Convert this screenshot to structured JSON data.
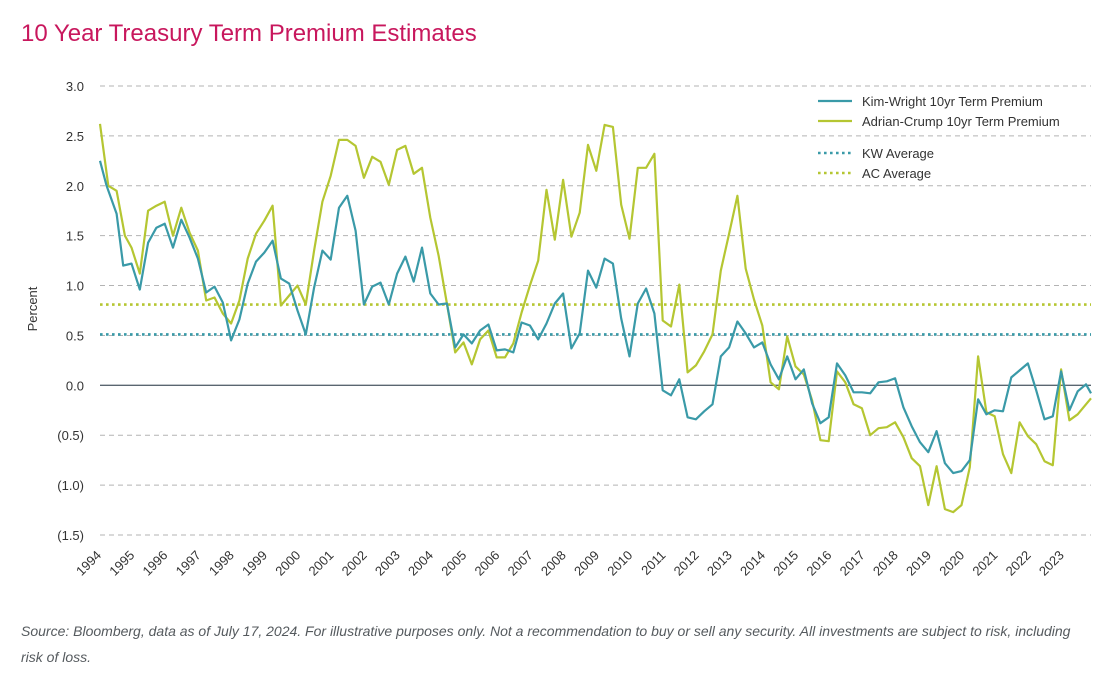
{
  "title": "10 Year Treasury Term Premium Estimates",
  "footnote": "Source: Bloomberg, data as of July 17, 2024. For illustrative purposes only. Not a recommendation to buy or sell any security. All investments are subject to risk, including risk of loss.",
  "colors": {
    "title": "#c8175d",
    "kim_wright": "#3a9aa8",
    "adrian_crump": "#b5c632",
    "grid": "#b3b3b3",
    "zero_line": "#5a6670",
    "text": "#333333"
  },
  "chart_data": {
    "type": "line",
    "title": "10 Year Treasury Term Premium Estimates",
    "ylabel": "Percent",
    "xlabel": "",
    "ylim": [
      -1.5,
      3.0
    ],
    "xlim": [
      1994,
      2023.85
    ],
    "grid": "horizontal dashed",
    "legend_position": "top-right",
    "y_ticks": [
      {
        "value": 3.0,
        "label": "3.0"
      },
      {
        "value": 2.5,
        "label": "2.5"
      },
      {
        "value": 2.0,
        "label": "2.0"
      },
      {
        "value": 1.5,
        "label": "1.5"
      },
      {
        "value": 1.0,
        "label": "1.0"
      },
      {
        "value": 0.5,
        "label": "0.5"
      },
      {
        "value": 0.0,
        "label": "0.0"
      },
      {
        "value": -0.5,
        "label": "(0.5)"
      },
      {
        "value": -1.0,
        "label": "(1.0)"
      },
      {
        "value": -1.5,
        "label": "(1.5)"
      }
    ],
    "x_ticks": [
      "1994",
      "1995",
      "1996",
      "1997",
      "1998",
      "1999",
      "2000",
      "2001",
      "2002",
      "2003",
      "2004",
      "2005",
      "2006",
      "2007",
      "2008",
      "2009",
      "2010",
      "2011",
      "2012",
      "2013",
      "2014",
      "2015",
      "2016",
      "2017",
      "2018",
      "2019",
      "2020",
      "2021",
      "2022",
      "2023"
    ],
    "series": [
      {
        "name": "Kim-Wright 10yr Term Premium",
        "style": "solid",
        "points": [
          [
            1994.0,
            2.25
          ],
          [
            1994.2,
            2.0
          ],
          [
            1994.5,
            1.72
          ],
          [
            1994.7,
            1.2
          ],
          [
            1994.95,
            1.22
          ],
          [
            1995.2,
            0.96
          ],
          [
            1995.45,
            1.43
          ],
          [
            1995.7,
            1.58
          ],
          [
            1995.95,
            1.62
          ],
          [
            1996.2,
            1.38
          ],
          [
            1996.45,
            1.66
          ],
          [
            1996.7,
            1.48
          ],
          [
            1996.95,
            1.27
          ],
          [
            1997.2,
            0.93
          ],
          [
            1997.45,
            0.99
          ],
          [
            1997.7,
            0.83
          ],
          [
            1997.95,
            0.45
          ],
          [
            1998.2,
            0.66
          ],
          [
            1998.45,
            1.02
          ],
          [
            1998.7,
            1.24
          ],
          [
            1998.95,
            1.33
          ],
          [
            1999.2,
            1.45
          ],
          [
            1999.45,
            1.07
          ],
          [
            1999.7,
            1.02
          ],
          [
            1999.95,
            0.75
          ],
          [
            2000.2,
            0.51
          ],
          [
            2000.45,
            0.98
          ],
          [
            2000.7,
            1.35
          ],
          [
            2000.95,
            1.26
          ],
          [
            2001.2,
            1.78
          ],
          [
            2001.45,
            1.9
          ],
          [
            2001.7,
            1.55
          ],
          [
            2001.95,
            0.81
          ],
          [
            2002.2,
            0.99
          ],
          [
            2002.45,
            1.03
          ],
          [
            2002.7,
            0.81
          ],
          [
            2002.95,
            1.12
          ],
          [
            2003.2,
            1.29
          ],
          [
            2003.45,
            1.04
          ],
          [
            2003.7,
            1.38
          ],
          [
            2003.95,
            0.92
          ],
          [
            2004.2,
            0.81
          ],
          [
            2004.45,
            0.82
          ],
          [
            2004.7,
            0.38
          ],
          [
            2004.95,
            0.51
          ],
          [
            2005.2,
            0.42
          ],
          [
            2005.45,
            0.55
          ],
          [
            2005.7,
            0.61
          ],
          [
            2005.95,
            0.35
          ],
          [
            2006.2,
            0.36
          ],
          [
            2006.45,
            0.33
          ],
          [
            2006.7,
            0.63
          ],
          [
            2006.95,
            0.6
          ],
          [
            2007.2,
            0.46
          ],
          [
            2007.45,
            0.62
          ],
          [
            2007.7,
            0.82
          ],
          [
            2007.95,
            0.92
          ],
          [
            2008.2,
            0.37
          ],
          [
            2008.45,
            0.52
          ],
          [
            2008.7,
            1.15
          ],
          [
            2008.95,
            0.98
          ],
          [
            2009.2,
            1.27
          ],
          [
            2009.45,
            1.22
          ],
          [
            2009.7,
            0.67
          ],
          [
            2009.95,
            0.29
          ],
          [
            2010.2,
            0.82
          ],
          [
            2010.45,
            0.97
          ],
          [
            2010.7,
            0.72
          ],
          [
            2010.95,
            -0.05
          ],
          [
            2011.2,
            -0.1
          ],
          [
            2011.45,
            0.06
          ],
          [
            2011.7,
            -0.32
          ],
          [
            2011.95,
            -0.34
          ],
          [
            2012.2,
            -0.26
          ],
          [
            2012.45,
            -0.19
          ],
          [
            2012.7,
            0.29
          ],
          [
            2012.95,
            0.38
          ],
          [
            2013.2,
            0.64
          ],
          [
            2013.45,
            0.52
          ],
          [
            2013.7,
            0.38
          ],
          [
            2013.95,
            0.43
          ],
          [
            2014.2,
            0.21
          ],
          [
            2014.45,
            0.06
          ],
          [
            2014.7,
            0.29
          ],
          [
            2014.95,
            0.06
          ],
          [
            2015.2,
            0.16
          ],
          [
            2015.45,
            -0.18
          ],
          [
            2015.7,
            -0.38
          ],
          [
            2015.95,
            -0.32
          ],
          [
            2016.2,
            0.22
          ],
          [
            2016.45,
            0.1
          ],
          [
            2016.7,
            -0.07
          ],
          [
            2016.95,
            -0.07
          ],
          [
            2017.2,
            -0.08
          ],
          [
            2017.45,
            0.03
          ],
          [
            2017.7,
            0.04
          ],
          [
            2017.95,
            0.07
          ],
          [
            2018.2,
            -0.22
          ],
          [
            2018.45,
            -0.41
          ],
          [
            2018.7,
            -0.57
          ],
          [
            2018.95,
            -0.67
          ],
          [
            2019.2,
            -0.46
          ],
          [
            2019.45,
            -0.78
          ],
          [
            2019.7,
            -0.88
          ],
          [
            2019.95,
            -0.86
          ],
          [
            2020.2,
            -0.75
          ],
          [
            2020.45,
            -0.14
          ],
          [
            2020.7,
            -0.29
          ],
          [
            2020.95,
            -0.25
          ],
          [
            2021.2,
            -0.26
          ],
          [
            2021.45,
            0.08
          ],
          [
            2021.7,
            0.15
          ],
          [
            2021.95,
            0.22
          ],
          [
            2022.2,
            -0.05
          ],
          [
            2022.45,
            -0.34
          ],
          [
            2022.7,
            -0.31
          ],
          [
            2022.95,
            0.14
          ],
          [
            2023.2,
            -0.25
          ],
          [
            2023.45,
            -0.06
          ],
          [
            2023.7,
            0.01
          ],
          [
            2023.85,
            -0.08
          ]
        ]
      },
      {
        "name": "Adrian-Crump 10yr Term Premium",
        "style": "solid",
        "points": [
          [
            1994.0,
            2.62
          ],
          [
            1994.25,
            2.0
          ],
          [
            1994.5,
            1.95
          ],
          [
            1994.75,
            1.5
          ],
          [
            1994.95,
            1.38
          ],
          [
            1995.2,
            1.12
          ],
          [
            1995.45,
            1.75
          ],
          [
            1995.7,
            1.8
          ],
          [
            1995.95,
            1.84
          ],
          [
            1996.2,
            1.5
          ],
          [
            1996.45,
            1.78
          ],
          [
            1996.7,
            1.53
          ],
          [
            1996.95,
            1.35
          ],
          [
            1997.2,
            0.85
          ],
          [
            1997.45,
            0.88
          ],
          [
            1997.7,
            0.72
          ],
          [
            1997.95,
            0.62
          ],
          [
            1998.2,
            0.85
          ],
          [
            1998.45,
            1.27
          ],
          [
            1998.7,
            1.52
          ],
          [
            1998.95,
            1.65
          ],
          [
            1999.2,
            1.8
          ],
          [
            1999.45,
            0.8
          ],
          [
            1999.7,
            0.9
          ],
          [
            1999.95,
            1.0
          ],
          [
            2000.2,
            0.81
          ],
          [
            2000.45,
            1.35
          ],
          [
            2000.7,
            1.84
          ],
          [
            2000.95,
            2.1
          ],
          [
            2001.2,
            2.46
          ],
          [
            2001.45,
            2.46
          ],
          [
            2001.7,
            2.4
          ],
          [
            2001.95,
            2.08
          ],
          [
            2002.2,
            2.29
          ],
          [
            2002.45,
            2.24
          ],
          [
            2002.7,
            2.01
          ],
          [
            2002.95,
            2.36
          ],
          [
            2003.2,
            2.4
          ],
          [
            2003.45,
            2.12
          ],
          [
            2003.7,
            2.18
          ],
          [
            2003.95,
            1.68
          ],
          [
            2004.2,
            1.3
          ],
          [
            2004.45,
            0.82
          ],
          [
            2004.7,
            0.33
          ],
          [
            2004.95,
            0.43
          ],
          [
            2005.2,
            0.21
          ],
          [
            2005.45,
            0.46
          ],
          [
            2005.7,
            0.55
          ],
          [
            2005.95,
            0.28
          ],
          [
            2006.2,
            0.28
          ],
          [
            2006.45,
            0.42
          ],
          [
            2006.7,
            0.73
          ],
          [
            2006.95,
            1.0
          ],
          [
            2007.2,
            1.25
          ],
          [
            2007.45,
            1.96
          ],
          [
            2007.7,
            1.46
          ],
          [
            2007.95,
            2.06
          ],
          [
            2008.2,
            1.49
          ],
          [
            2008.45,
            1.73
          ],
          [
            2008.7,
            2.41
          ],
          [
            2008.95,
            2.15
          ],
          [
            2009.2,
            2.61
          ],
          [
            2009.45,
            2.59
          ],
          [
            2009.7,
            1.81
          ],
          [
            2009.95,
            1.47
          ],
          [
            2010.2,
            2.18
          ],
          [
            2010.45,
            2.18
          ],
          [
            2010.7,
            2.32
          ],
          [
            2010.95,
            0.65
          ],
          [
            2011.2,
            0.59
          ],
          [
            2011.45,
            1.01
          ],
          [
            2011.7,
            0.13
          ],
          [
            2011.95,
            0.2
          ],
          [
            2012.2,
            0.34
          ],
          [
            2012.45,
            0.51
          ],
          [
            2012.7,
            1.15
          ],
          [
            2012.95,
            1.52
          ],
          [
            2013.2,
            1.9
          ],
          [
            2013.45,
            1.17
          ],
          [
            2013.7,
            0.86
          ],
          [
            2013.95,
            0.6
          ],
          [
            2014.2,
            0.03
          ],
          [
            2014.45,
            -0.04
          ],
          [
            2014.7,
            0.49
          ],
          [
            2014.95,
            0.19
          ],
          [
            2015.2,
            0.11
          ],
          [
            2015.45,
            -0.15
          ],
          [
            2015.7,
            -0.55
          ],
          [
            2015.95,
            -0.56
          ],
          [
            2016.2,
            0.14
          ],
          [
            2016.45,
            0.03
          ],
          [
            2016.7,
            -0.19
          ],
          [
            2016.95,
            -0.23
          ],
          [
            2017.2,
            -0.5
          ],
          [
            2017.45,
            -0.43
          ],
          [
            2017.7,
            -0.42
          ],
          [
            2017.95,
            -0.37
          ],
          [
            2018.2,
            -0.52
          ],
          [
            2018.45,
            -0.73
          ],
          [
            2018.7,
            -0.81
          ],
          [
            2018.95,
            -1.2
          ],
          [
            2019.2,
            -0.81
          ],
          [
            2019.45,
            -1.24
          ],
          [
            2019.7,
            -1.27
          ],
          [
            2019.95,
            -1.2
          ],
          [
            2020.2,
            -0.82
          ],
          [
            2020.45,
            0.29
          ],
          [
            2020.7,
            -0.27
          ],
          [
            2020.95,
            -0.31
          ],
          [
            2021.2,
            -0.69
          ],
          [
            2021.45,
            -0.88
          ],
          [
            2021.7,
            -0.37
          ],
          [
            2021.95,
            -0.51
          ],
          [
            2022.2,
            -0.59
          ],
          [
            2022.45,
            -0.76
          ],
          [
            2022.7,
            -0.8
          ],
          [
            2022.95,
            0.16
          ],
          [
            2023.2,
            -0.35
          ],
          [
            2023.45,
            -0.29
          ],
          [
            2023.7,
            -0.19
          ],
          [
            2023.85,
            -0.13
          ]
        ]
      },
      {
        "name": "KW Average",
        "style": "dotted",
        "value": 0.51
      },
      {
        "name": "AC Average",
        "style": "dotted",
        "value": 0.81
      }
    ]
  }
}
